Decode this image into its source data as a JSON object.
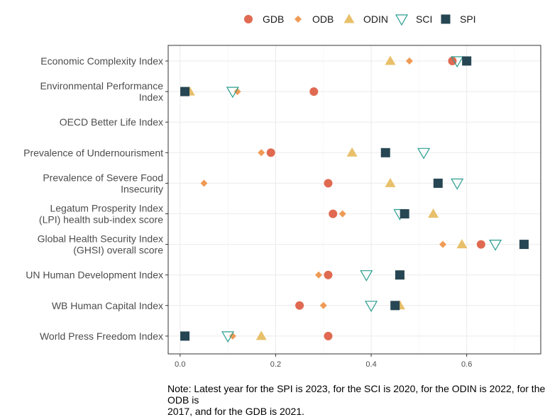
{
  "chart_data": {
    "type": "scatter",
    "categories": [
      "Economic Complexity Index",
      "Environmental Performance\nIndex",
      "OECD Better Life Index",
      "Prevalence of Undernourisment",
      "Prevalence of Severe Food\nInsecurity",
      "Legatum Prosperity Index\n(LPI) health sub-index score",
      "Global Health Security Index\n(GHSI) overall score",
      "UN Human Development Index",
      "WB Human Capital Index",
      "World Press Freedom Index"
    ],
    "x_ticks": [
      "0.0",
      "0.2",
      "0.4",
      "0.6"
    ],
    "x_tick_values": [
      0.0,
      0.2,
      0.4,
      0.6
    ],
    "xlim": [
      -0.025,
      0.755
    ],
    "grid": true,
    "legend_position": "top",
    "series": [
      {
        "name": "GDB",
        "marker": "circle",
        "color": "#E06A51",
        "values": [
          0.57,
          0.28,
          null,
          0.19,
          0.31,
          0.32,
          0.63,
          0.31,
          0.25,
          0.31
        ]
      },
      {
        "name": "ODB",
        "marker": "diamond",
        "color": "#EF9A55",
        "values": [
          0.48,
          0.12,
          null,
          0.17,
          0.05,
          0.34,
          0.55,
          0.29,
          0.3,
          0.11
        ]
      },
      {
        "name": "ODIN",
        "marker": "triangle",
        "color": "#E8C06A",
        "values": [
          0.44,
          0.02,
          null,
          0.36,
          0.44,
          0.53,
          0.59,
          0.46,
          0.46,
          0.17
        ]
      },
      {
        "name": "SCI",
        "marker": "triangle-down",
        "color": "#2A9D8F",
        "values": [
          0.58,
          0.11,
          null,
          0.51,
          0.58,
          0.46,
          0.66,
          0.39,
          0.4,
          0.1
        ]
      },
      {
        "name": "SPI",
        "marker": "square",
        "color": "#264653",
        "values": [
          0.6,
          0.01,
          null,
          0.43,
          0.54,
          0.47,
          0.72,
          0.46,
          0.45,
          0.01
        ]
      }
    ]
  },
  "note": "Note: Latest year for the SPI is 2023, for the SCI is 2020, for the ODIN is 2022, for the ODB is\n2017, and for the GDB is 2021."
}
